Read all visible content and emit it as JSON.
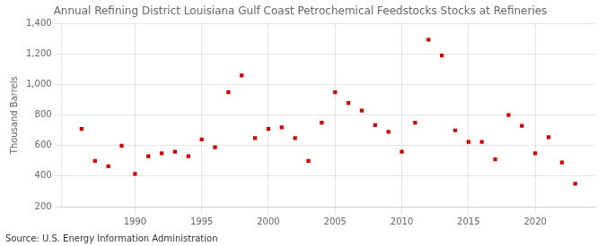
{
  "chart_data": {
    "type": "scatter",
    "title": "Annual Refining District Louisiana Gulf Coast Petrochemical Feedstocks Stocks at Refineries",
    "ylabel": "Thousand Barrels",
    "source": "Source: U.S. Energy Information Administration",
    "x": [
      1986,
      1987,
      1988,
      1989,
      1990,
      1991,
      1992,
      1993,
      1994,
      1995,
      1996,
      1997,
      1998,
      1999,
      2000,
      2001,
      2002,
      2003,
      2004,
      2005,
      2006,
      2007,
      2008,
      2009,
      2010,
      2011,
      2012,
      2013,
      2014,
      2015,
      2016,
      2017,
      2018,
      2019,
      2020,
      2021,
      2022,
      2023
    ],
    "values": [
      710,
      500,
      465,
      600,
      415,
      530,
      550,
      560,
      530,
      640,
      590,
      950,
      1060,
      650,
      710,
      720,
      650,
      500,
      750,
      950,
      880,
      830,
      735,
      690,
      560,
      750,
      1295,
      1190,
      700,
      625,
      625,
      510,
      800,
      730,
      550,
      655,
      490,
      350
    ],
    "color": "#cc0000",
    "marker": "square",
    "xlim": [
      1984.5,
      2024.5
    ],
    "xticks": [
      1990,
      1995,
      2000,
      2005,
      2010,
      2015,
      2020
    ],
    "ylim": [
      200,
      1400
    ],
    "yticks": [
      200,
      400,
      600,
      800,
      {
        "value": 1000,
        "label": "1,000"
      },
      {
        "value": 1200,
        "label": "1,200"
      },
      {
        "value": 1400,
        "label": "1,400"
      }
    ],
    "grid": true
  }
}
